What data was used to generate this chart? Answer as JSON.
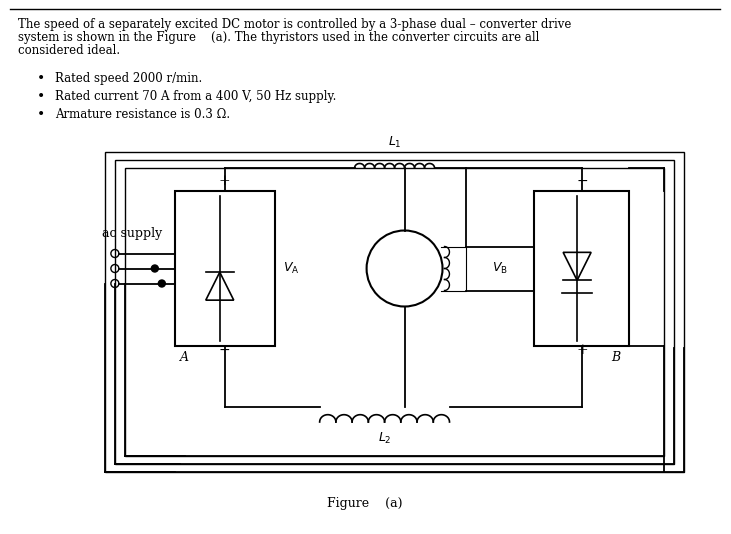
{
  "title_text": "The speed of a separately excited DC motor is controlled by a 3-phase dual – converter drive\nsystem is shown in the Figure    (a). The thyristors used in the converter circuits are all\nconsidered ideal.",
  "bullet1": "Rated speed 2000 r/min.",
  "bullet2": "Rated current 70 A from a 400 V, 50 Hz supply.",
  "bullet3": "Armature resistance is 0.3 Ω.",
  "figure_label": "Figure    (a)",
  "bg_color": "#ffffff",
  "text_color": "#000000",
  "line_color": "#000000",
  "border_color": "#000000"
}
